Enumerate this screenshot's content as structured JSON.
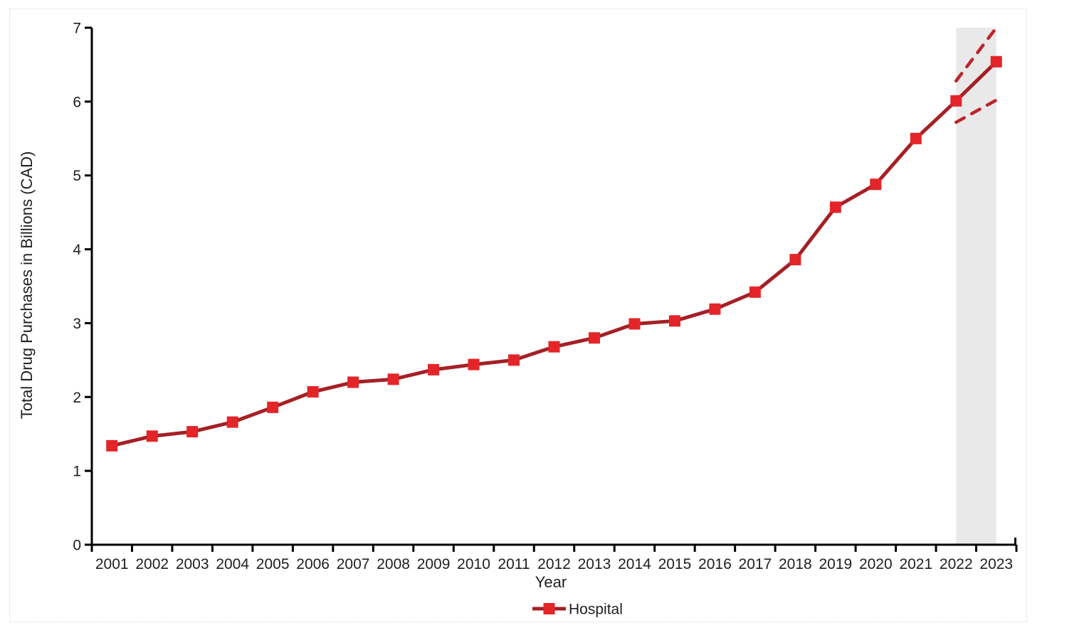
{
  "chart_data": {
    "type": "line",
    "title": "",
    "xlabel": "Year",
    "ylabel": "Total Drug Purchases in Billions (CAD)",
    "ylim": [
      0,
      7
    ],
    "yticks": [
      0,
      1,
      2,
      3,
      4,
      5,
      6,
      7
    ],
    "grid": "off",
    "legend_position": "bottom",
    "categories": [
      "2001",
      "2002",
      "2003",
      "2004",
      "2005",
      "2006",
      "2007",
      "2008",
      "2009",
      "2010",
      "2011",
      "2012",
      "2013",
      "2014",
      "2015",
      "2016",
      "2017",
      "2018",
      "2019",
      "2020",
      "2021",
      "2022",
      "2023"
    ],
    "series": [
      {
        "name": "Hospital",
        "values": [
          1.34,
          1.47,
          1.53,
          1.66,
          1.86,
          2.07,
          2.2,
          2.24,
          2.37,
          2.44,
          2.5,
          2.68,
          2.8,
          2.99,
          3.03,
          3.19,
          3.42,
          3.86,
          4.57,
          4.88,
          5.5,
          6.01,
          6.54
        ]
      }
    ],
    "forecast": {
      "shaded_band_categories": [
        "2022",
        "2023"
      ],
      "upper_bound": {
        "from_category": "2022",
        "from_value": 6.28,
        "to_category": "2023",
        "to_value": 7.0
      },
      "lower_bound": {
        "from_category": "2022",
        "from_value": 5.72,
        "to_category": "2023",
        "to_value": 6.02
      }
    },
    "colors": {
      "line": "#A42025",
      "marker": "#E32529",
      "dashed": "#BB2429",
      "band": "#E9E9E9",
      "axis": "#000000",
      "text": "#1f1f1f",
      "frame_border": "#D9D9D9"
    }
  }
}
